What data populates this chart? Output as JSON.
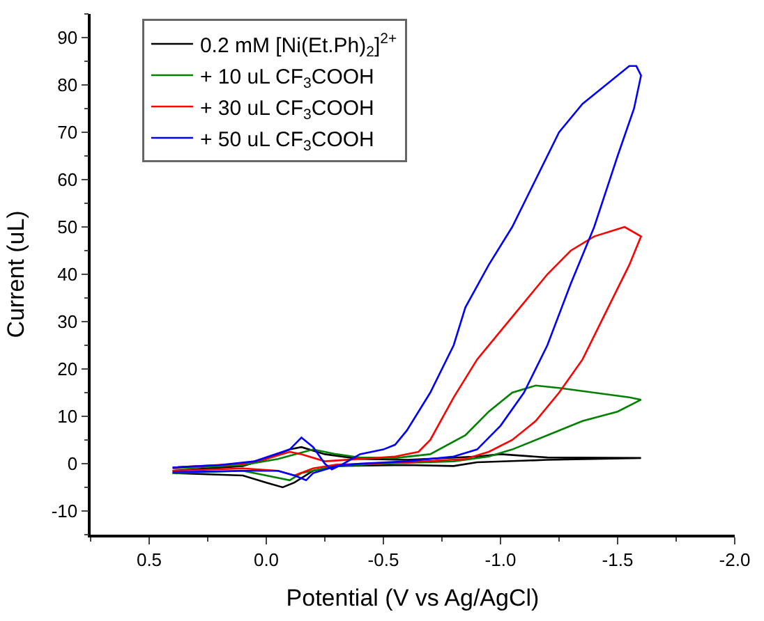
{
  "chart_data": {
    "type": "line",
    "xlabel": "Potential (V vs Ag/AgCl)",
    "ylabel": "Current (uL)",
    "xlim": [
      0.75,
      -2.0
    ],
    "xticks": [
      {
        "value": 0.5,
        "label": "0.5"
      },
      {
        "value": 0,
        "label": "0.0"
      },
      {
        "value": -0.5,
        "label": "-0.5"
      },
      {
        "value": -1,
        "label": "-1.0"
      },
      {
        "value": -1.5,
        "label": "-1.5"
      },
      {
        "value": -2,
        "label": "-2.0"
      }
    ],
    "ylim": [
      -15,
      95
    ],
    "yticks": [
      -10,
      0,
      10,
      20,
      30,
      40,
      50,
      60,
      70,
      80,
      90
    ],
    "grid": false,
    "legend": "top left",
    "marker": "none",
    "line_style": "solid",
    "series": [
      {
        "name": "0.2 mM [Ni(Et.Ph)$_{2}$]$^{2+}$",
        "color": "#000000",
        "x": [
          0.4,
          0.1,
          0,
          -0.1,
          -0.15,
          -0.25,
          -0.4,
          -0.6,
          -0.9,
          -1.0,
          -1.2,
          -1.6,
          -1.2,
          -0.9,
          -0.8,
          -0.6,
          -0.3,
          -0.2,
          -0.12,
          -0.07,
          0,
          0.1,
          0.4
        ],
        "values": [
          -1.5,
          -0.5,
          1,
          3,
          3.5,
          2,
          1,
          0.8,
          1.5,
          2,
          1.3,
          1.2,
          0.8,
          0.3,
          -0.5,
          -0.3,
          -0.5,
          -1.5,
          -4,
          -5,
          -4,
          -2.5,
          -2
        ]
      },
      {
        "name": "+ 10 uL CF$_{3}$COOH",
        "color": "#008000",
        "x": [
          0.4,
          0.1,
          -0.05,
          -0.2,
          -0.3,
          -0.4,
          -0.55,
          -0.7,
          -0.85,
          -0.95,
          -1.05,
          -1.15,
          -1.25,
          -1.4,
          -1.55,
          -1.6,
          -1.5,
          -1.35,
          -1.2,
          -1.05,
          -0.95,
          -0.8,
          -0.5,
          -0.3,
          -0.15,
          -0.1,
          0,
          0.1,
          0.4
        ],
        "values": [
          -1,
          -0.3,
          1,
          3,
          2,
          1.3,
          1.2,
          2,
          6,
          11,
          15,
          16.5,
          16,
          15,
          14,
          13.5,
          11,
          9,
          6,
          3,
          1.5,
          0.5,
          0,
          -0.5,
          -2,
          -3.5,
          -2.5,
          -1.5,
          -2
        ]
      },
      {
        "name": "+ 30 uL CF$_{3}$COOH",
        "color": "#ff0000",
        "x": [
          0.4,
          0.1,
          0,
          -0.1,
          -0.15,
          -0.25,
          -0.4,
          -0.55,
          -0.65,
          -0.7,
          -0.8,
          -0.9,
          -1.0,
          -1.1,
          -1.2,
          -1.3,
          -1.4,
          -1.53,
          -1.6,
          -1.55,
          -1.45,
          -1.35,
          -1.25,
          -1.15,
          -1.05,
          -0.95,
          -0.85,
          -0.6,
          -0.3,
          -0.2,
          -0.12,
          -0.05,
          0.1,
          0.4
        ],
        "values": [
          -0.8,
          0,
          1,
          2.5,
          2,
          0.5,
          1,
          1.5,
          2.5,
          5,
          14,
          22,
          28,
          34,
          40,
          45,
          48,
          50,
          48,
          42,
          32,
          22,
          15,
          9,
          5,
          2.5,
          1,
          0.3,
          -0.2,
          -1,
          -2.5,
          -1.5,
          -1,
          -1.5
        ]
      },
      {
        "name": "+ 50 uL CF$_{3}$COOH",
        "color": "#0000ff",
        "x": [
          0.4,
          0.2,
          0.05,
          -0.1,
          -0.15,
          -0.2,
          -0.25,
          -0.28,
          -0.33,
          -0.4,
          -0.5,
          -0.55,
          -0.6,
          -0.7,
          -0.8,
          -0.85,
          -0.95,
          -1.05,
          -1.15,
          -1.25,
          -1.35,
          -1.45,
          -1.55,
          -1.58,
          -1.6,
          -1.57,
          -1.5,
          -1.4,
          -1.3,
          -1.2,
          -1.1,
          -1.0,
          -0.9,
          -0.8,
          -0.6,
          -0.4,
          -0.3,
          -0.2,
          -0.17,
          -0.12,
          -0.05,
          0.1,
          0.4
        ],
        "values": [
          -0.8,
          -0.3,
          0.5,
          3,
          5.5,
          3.5,
          0,
          -1.2,
          0,
          2,
          3,
          4,
          7,
          15,
          25,
          33,
          42,
          50,
          60,
          70,
          76,
          80,
          84,
          84,
          82,
          75,
          65,
          50,
          38,
          25,
          15,
          8,
          3,
          1.5,
          0.5,
          0,
          -0.5,
          -2,
          -3.5,
          -2.5,
          -1.5,
          -1.5,
          -1.8
        ]
      }
    ]
  }
}
